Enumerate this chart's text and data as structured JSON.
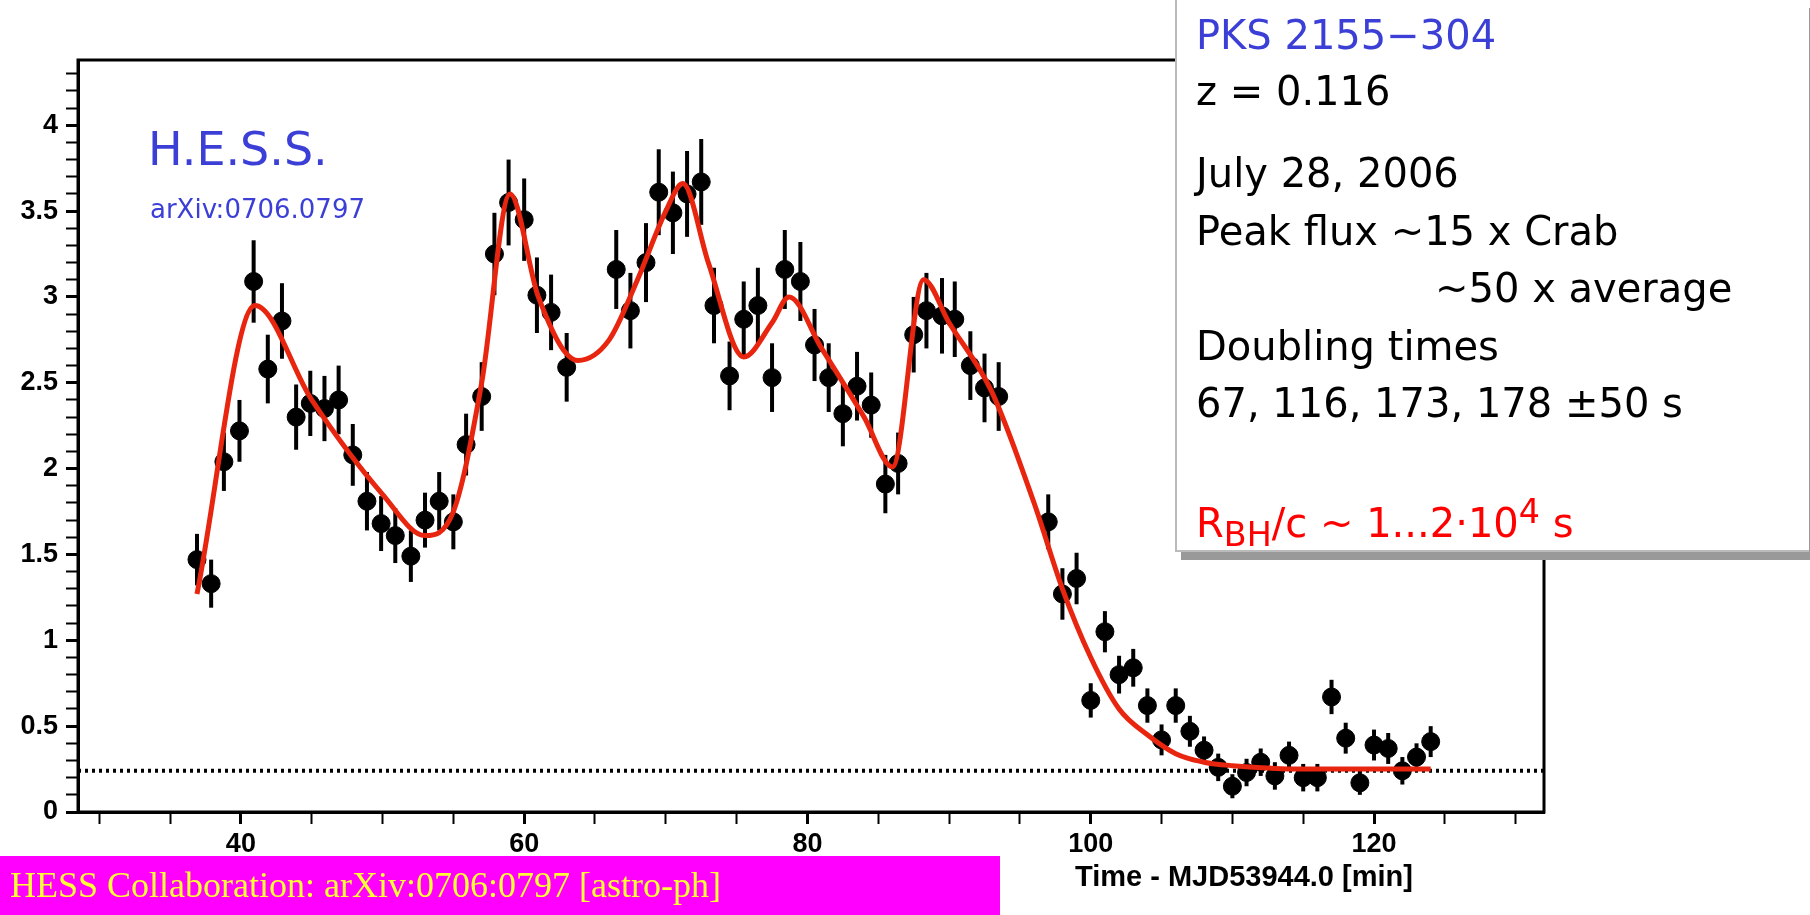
{
  "chart_data": {
    "type": "scatter",
    "xlabel": "Time - MJD53944.0 [min]",
    "xlim": [
      28.5,
      132
    ],
    "xticks": [
      {
        "value": 30,
        "label": null
      },
      {
        "value": 35,
        "label": null
      },
      40,
      {
        "value": 45,
        "label": null
      },
      {
        "value": 50,
        "label": null
      },
      {
        "value": 55,
        "label": null
      },
      60,
      {
        "value": 65,
        "label": null
      },
      {
        "value": 70,
        "label": null
      },
      {
        "value": 75,
        "label": null
      },
      80,
      {
        "value": 85,
        "label": null
      },
      {
        "value": 90,
        "label": null
      },
      {
        "value": 95,
        "label": null
      },
      100,
      {
        "value": 105,
        "label": null
      },
      {
        "value": 110,
        "label": null
      },
      {
        "value": 115,
        "label": null
      },
      120,
      {
        "value": 125,
        "label": null
      },
      {
        "value": 130,
        "label": null
      }
    ],
    "ylim": [
      0,
      4.38
    ],
    "yticks": [
      0,
      {
        "value": 0.1,
        "label": null
      },
      {
        "value": 0.2,
        "label": null
      },
      {
        "value": 0.3,
        "label": null
      },
      {
        "value": 0.4,
        "label": null
      },
      0.5,
      {
        "value": 0.6,
        "label": null
      },
      {
        "value": 0.7,
        "label": null
      },
      {
        "value": 0.8,
        "label": null
      },
      {
        "value": 0.9,
        "label": null
      },
      1,
      {
        "value": 1.1,
        "label": null
      },
      {
        "value": 1.2,
        "label": null
      },
      {
        "value": 1.3,
        "label": null
      },
      {
        "value": 1.4,
        "label": null
      },
      1.5,
      {
        "value": 1.6,
        "label": null
      },
      {
        "value": 1.7,
        "label": null
      },
      {
        "value": 1.8,
        "label": null
      },
      {
        "value": 1.9,
        "label": null
      },
      2,
      {
        "value": 2.1,
        "label": null
      },
      {
        "value": 2.2,
        "label": null
      },
      {
        "value": 2.3,
        "label": null
      },
      {
        "value": 2.4,
        "label": null
      },
      2.5,
      {
        "value": 2.6,
        "label": null
      },
      {
        "value": 2.7,
        "label": null
      },
      {
        "value": 2.8,
        "label": null
      },
      {
        "value": 2.9,
        "label": null
      },
      3,
      {
        "value": 3.1,
        "label": null
      },
      {
        "value": 3.2,
        "label": null
      },
      {
        "value": 3.3,
        "label": null
      },
      {
        "value": 3.4,
        "label": null
      },
      3.5,
      {
        "value": 3.6,
        "label": null
      },
      {
        "value": 3.7,
        "label": null
      },
      {
        "value": 3.8,
        "label": null
      },
      {
        "value": 3.9,
        "label": null
      },
      4,
      {
        "value": 4.1,
        "label": null
      },
      {
        "value": 4.2,
        "label": null
      },
      {
        "value": 4.3,
        "label": null
      }
    ],
    "ref_lines": [
      {
        "axis": "y",
        "value": 0.24,
        "line_style": "dotted",
        "color": "#000000"
      }
    ],
    "annotations": [
      "H.E.S.S.",
      "arXiv:0706.0797",
      "PKS 2155−304",
      "z = 0.116",
      "July 28, 2006",
      "Peak flux ~15 x Crab",
      "~50 x average",
      "Doubling times",
      "67, 116, 173, 178 ±50 s",
      "R$_{BH}$/c ~ 1...2·10$^{4}$ s",
      "HESS Collaboration: arXiv:0706:0797 [astro-ph]"
    ],
    "series": [
      {
        "type": "scatter",
        "color": "#000000",
        "marker": "circle",
        "x": [
          36.9,
          37.9,
          38.8,
          39.9,
          40.9,
          41.9,
          42.9,
          43.9,
          44.9,
          45.9,
          46.9,
          47.9,
          48.9,
          49.9,
          50.9,
          52.0,
          53.0,
          54.0,
          55.0,
          55.9,
          57.0,
          57.9,
          58.9,
          60.0,
          60.9,
          61.9,
          63.0,
          66.5,
          67.5,
          68.6,
          69.5,
          70.5,
          71.5,
          72.5,
          73.4,
          74.5,
          75.5,
          76.5,
          77.5,
          78.4,
          79.5,
          80.5,
          81.5,
          82.5,
          83.5,
          84.5,
          85.5,
          86.4,
          87.5,
          88.4,
          89.5,
          90.4,
          91.5,
          92.5,
          93.5,
          97.0,
          98.0,
          99.0,
          100.0,
          101.0,
          102.0,
          103.0,
          104.0,
          105.0,
          106.0,
          107.0,
          108.0,
          109.0,
          110.0,
          111.0,
          112.0,
          113.0,
          114.0,
          115.0,
          116.0,
          117.0,
          118.0,
          119.0,
          120.0,
          121.0,
          122.0,
          123.0,
          124.0
        ],
        "values": [
          1.47,
          1.33,
          2.04,
          2.22,
          3.09,
          2.58,
          2.86,
          2.3,
          2.38,
          2.35,
          2.4,
          2.08,
          1.81,
          1.68,
          1.61,
          1.49,
          1.7,
          1.81,
          1.69,
          2.14,
          2.42,
          3.25,
          3.55,
          3.45,
          3.01,
          2.91,
          2.59,
          3.16,
          2.92,
          3.2,
          3.61,
          3.49,
          3.6,
          3.67,
          2.95,
          2.54,
          2.87,
          2.95,
          2.53,
          3.16,
          3.09,
          2.72,
          2.53,
          2.32,
          2.48,
          2.37,
          1.91,
          2.03,
          2.78,
          2.92,
          2.89,
          2.87,
          2.6,
          2.47,
          2.42,
          1.69,
          1.27,
          1.36,
          0.65,
          1.05,
          0.8,
          0.84,
          0.62,
          0.42,
          0.62,
          0.47,
          0.36,
          0.26,
          0.15,
          0.23,
          0.29,
          0.21,
          0.33,
          0.2,
          0.2,
          0.67,
          0.43,
          0.17,
          0.39,
          0.37,
          0.24,
          0.32,
          0.41
        ],
        "errors": [
          0.15,
          0.14,
          0.17,
          0.18,
          0.24,
          0.2,
          0.22,
          0.19,
          0.19,
          0.19,
          0.2,
          0.18,
          0.17,
          0.16,
          0.16,
          0.15,
          0.16,
          0.17,
          0.16,
          0.18,
          0.2,
          0.24,
          0.25,
          0.24,
          0.22,
          0.22,
          0.2,
          0.23,
          0.22,
          0.23,
          0.25,
          0.24,
          0.25,
          0.25,
          0.22,
          0.2,
          0.22,
          0.22,
          0.2,
          0.23,
          0.23,
          0.21,
          0.2,
          0.19,
          0.2,
          0.19,
          0.17,
          0.18,
          0.22,
          0.22,
          0.22,
          0.22,
          0.2,
          0.2,
          0.2,
          0.16,
          0.15,
          0.15,
          0.1,
          0.12,
          0.11,
          0.11,
          0.1,
          0.09,
          0.1,
          0.09,
          0.08,
          0.08,
          0.07,
          0.08,
          0.08,
          0.08,
          0.08,
          0.08,
          0.08,
          0.1,
          0.09,
          0.07,
          0.09,
          0.09,
          0.08,
          0.08,
          0.09
        ]
      },
      {
        "type": "line",
        "color": "#e8250f",
        "marker": "none",
        "line_style": "solid",
        "x": [
          36.9,
          41.0,
          45,
          50,
          53.0,
          55,
          57,
          59.0,
          61,
          63.8,
          66,
          68,
          70,
          71.2,
          73,
          75.5,
          77.5,
          78.7,
          81,
          84,
          86.0,
          88.2,
          90,
          93,
          96,
          98,
          100,
          102,
          104,
          106,
          108,
          110,
          115,
          124
        ],
        "values": [
          1.27,
          2.95,
          2.4,
          1.85,
          1.61,
          1.75,
          2.5,
          3.6,
          3.0,
          2.63,
          2.75,
          3.1,
          3.5,
          3.66,
          3.2,
          2.65,
          2.85,
          3.0,
          2.7,
          2.3,
          2.01,
          3.1,
          2.85,
          2.45,
          1.8,
          1.3,
          0.9,
          0.6,
          0.45,
          0.34,
          0.29,
          0.27,
          0.25,
          0.25
        ]
      }
    ]
  }
}
